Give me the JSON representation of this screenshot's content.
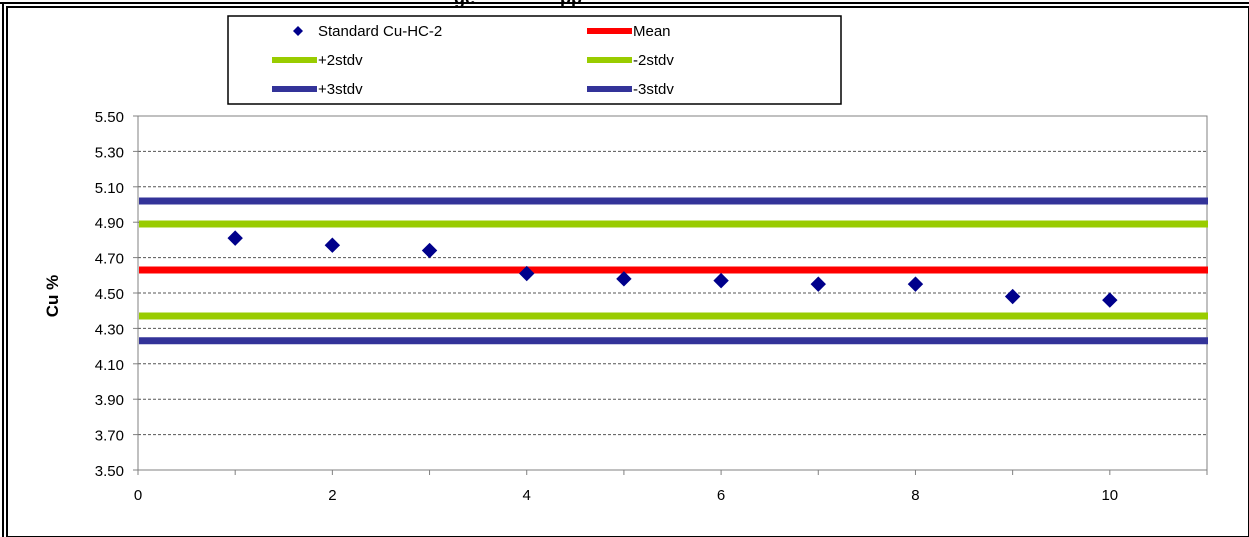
{
  "chart_data": {
    "type": "scatter",
    "title_fragment": "ge",
    "title_fragment_2": "pp",
    "ylabel": "Cu %",
    "xlabel": "",
    "xlim": [
      0,
      11
    ],
    "ylim": [
      3.5,
      5.5
    ],
    "x_ticks": [
      "0",
      "2",
      "4",
      "6",
      "8",
      "10"
    ],
    "y_ticks": [
      "5.50",
      "5.30",
      "5.10",
      "4.90",
      "4.70",
      "4.50",
      "4.30",
      "4.10",
      "3.90",
      "3.70",
      "3.50"
    ],
    "grid": true,
    "legend_placement": "top",
    "series": [
      {
        "name": "Standard Cu-HC-2",
        "kind": "points",
        "color": "#00008B",
        "x": [
          1,
          2,
          3,
          4,
          5,
          6,
          7,
          8,
          9,
          10
        ],
        "y": [
          4.81,
          4.77,
          4.74,
          4.61,
          4.58,
          4.57,
          4.55,
          4.55,
          4.48,
          4.46
        ]
      }
    ],
    "reference_lines": [
      {
        "name": "Mean",
        "y": 4.63,
        "color": "#FF0000"
      },
      {
        "name": "+2stdv",
        "y": 4.89,
        "color": "#99CC00"
      },
      {
        "name": "-2stdv",
        "y": 4.37,
        "color": "#99CC00"
      },
      {
        "name": "+3stdv",
        "y": 5.02,
        "color": "#333399"
      },
      {
        "name": "-3stdv",
        "y": 4.23,
        "color": "#333399"
      }
    ],
    "legend": [
      {
        "label": "Standard Cu-HC-2",
        "marker": "diamond",
        "color": "#00008B"
      },
      {
        "label": "Mean",
        "marker": "line",
        "color": "#FF0000"
      },
      {
        "label": "+2stdv",
        "marker": "line",
        "color": "#99CC00"
      },
      {
        "label": "-2stdv",
        "marker": "line",
        "color": "#99CC00"
      },
      {
        "label": "+3stdv",
        "marker": "line",
        "color": "#333399"
      },
      {
        "label": "-3stdv",
        "marker": "line",
        "color": "#333399"
      }
    ]
  }
}
